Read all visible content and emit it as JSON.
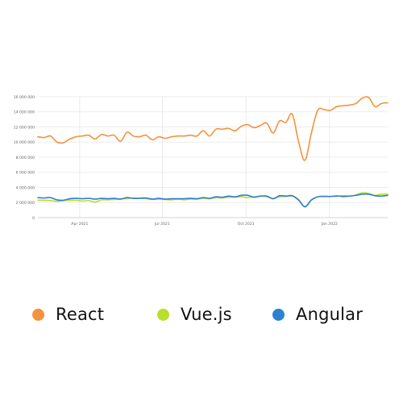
{
  "colors": {
    "react": "#f5923e",
    "vue": "#b9de2d",
    "angular": "#2f80d1",
    "grid": "#e6e6e6",
    "axis_text": "#666666"
  },
  "legend": [
    {
      "label": "React",
      "color": "#f5923e"
    },
    {
      "label": "Vue.js",
      "color": "#b9de2d"
    },
    {
      "label": "Angular",
      "color": "#2f80d1"
    }
  ],
  "chart_data": {
    "type": "line",
    "title": "",
    "xlabel": "",
    "ylabel": "",
    "ylim": [
      0,
      16000000
    ],
    "xlim": [
      "2021-02-14",
      "2022-03-06"
    ],
    "grid": true,
    "legend_position": "bottom",
    "y_ticks": [
      {
        "value": 0,
        "label": "0"
      },
      {
        "value": 2000000,
        "label": "2 000 000"
      },
      {
        "value": 4000000,
        "label": "4 000 000"
      },
      {
        "value": 6000000,
        "label": "6 000 000"
      },
      {
        "value": 8000000,
        "label": "8 000 000"
      },
      {
        "value": 10000000,
        "label": "10 000 000"
      },
      {
        "value": 12000000,
        "label": "12 000 000"
      },
      {
        "value": 14000000,
        "label": "14 000 000"
      },
      {
        "value": 16000000,
        "label": "16 000 000"
      }
    ],
    "x_ticks": [
      {
        "value": "2021-04-01",
        "label": "Apr 2021"
      },
      {
        "value": "2021-07-01",
        "label": "Jul 2021"
      },
      {
        "value": "2021-10-01",
        "label": "Oct 2021"
      },
      {
        "value": "2022-01-01",
        "label": "Jan 2022"
      }
    ],
    "x": [
      "2021-02-14",
      "2021-02-21",
      "2021-02-28",
      "2021-03-07",
      "2021-03-14",
      "2021-03-21",
      "2021-03-28",
      "2021-04-04",
      "2021-04-11",
      "2021-04-18",
      "2021-04-25",
      "2021-05-02",
      "2021-05-09",
      "2021-05-16",
      "2021-05-23",
      "2021-05-30",
      "2021-06-06",
      "2021-06-13",
      "2021-06-20",
      "2021-06-27",
      "2021-07-04",
      "2021-07-11",
      "2021-07-18",
      "2021-07-25",
      "2021-08-01",
      "2021-08-08",
      "2021-08-15",
      "2021-08-22",
      "2021-08-29",
      "2021-09-05",
      "2021-09-12",
      "2021-09-19",
      "2021-09-26",
      "2021-10-03",
      "2021-10-10",
      "2021-10-17",
      "2021-10-24",
      "2021-10-31",
      "2021-11-07",
      "2021-11-14",
      "2021-11-21",
      "2021-11-28",
      "2021-12-05",
      "2021-12-12",
      "2021-12-19",
      "2021-12-26",
      "2022-01-02",
      "2022-01-09",
      "2022-01-16",
      "2022-01-23",
      "2022-01-30",
      "2022-02-06",
      "2022-02-13",
      "2022-02-20",
      "2022-02-27",
      "2022-03-06"
    ],
    "series": [
      {
        "name": "React",
        "color": "#f5923e",
        "values": [
          10700000,
          10600000,
          10800000,
          10000000,
          9900000,
          10400000,
          10700000,
          10800000,
          10900000,
          10400000,
          11000000,
          10800000,
          10900000,
          10100000,
          11300000,
          10800000,
          10700000,
          10900000,
          10300000,
          10700000,
          10500000,
          10700000,
          10800000,
          10800000,
          10900000,
          10800000,
          11500000,
          10800000,
          11700000,
          11700000,
          11800000,
          11500000,
          12100000,
          12300000,
          11900000,
          12200000,
          12500000,
          11200000,
          12800000,
          12600000,
          13700000,
          10000000,
          7600000,
          11200000,
          14200000,
          14300000,
          14200000,
          14700000,
          14800000,
          14900000,
          15100000,
          15800000,
          15900000,
          14700000,
          15100000,
          15200000
        ]
      },
      {
        "name": "Vue.js",
        "color": "#b9de2d",
        "values": [
          2300000,
          2300000,
          2250000,
          2150000,
          2250000,
          2300000,
          2300000,
          2200000,
          2250000,
          2050000,
          2350000,
          2350000,
          2400000,
          2500000,
          2500000,
          2600000,
          2550000,
          2500000,
          2400000,
          2450000,
          2400000,
          2350000,
          2450000,
          2350000,
          2450000,
          2450000,
          2550000,
          2500000,
          2650000,
          2600000,
          2700000,
          2700000,
          2750000,
          2650000,
          2750000,
          2850000,
          2750000,
          2550000,
          2750000,
          2800000,
          2850000,
          2400000,
          1400000,
          2300000,
          2750000,
          2850000,
          2800000,
          2900000,
          2700000,
          2850000,
          3000000,
          3300000,
          3200000,
          2950000,
          3100000,
          3100000
        ]
      },
      {
        "name": "Angular",
        "color": "#2f80d1",
        "values": [
          2650000,
          2600000,
          2650000,
          2350000,
          2300000,
          2500000,
          2550000,
          2500000,
          2550000,
          2450000,
          2550000,
          2500000,
          2550000,
          2450000,
          2650000,
          2550000,
          2550000,
          2600000,
          2450000,
          2550000,
          2450000,
          2500000,
          2500000,
          2500000,
          2550000,
          2500000,
          2650000,
          2550000,
          2750000,
          2700000,
          2850000,
          2750000,
          2950000,
          2950000,
          2700000,
          2850000,
          2850000,
          2500000,
          2900000,
          2850000,
          2900000,
          2300000,
          1450000,
          2350000,
          2750000,
          2800000,
          2800000,
          2850000,
          2850000,
          2850000,
          2950000,
          3100000,
          3100000,
          2900000,
          2850000,
          2950000
        ]
      }
    ]
  }
}
